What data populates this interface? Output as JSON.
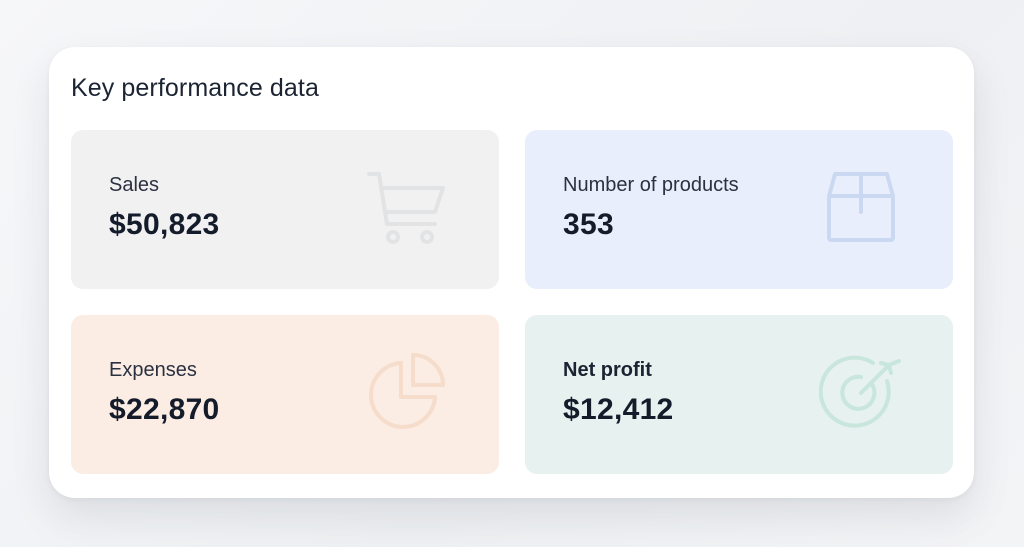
{
  "panel": {
    "title": "Key performance data"
  },
  "tiles": [
    {
      "label": "Sales",
      "value": "$50,823",
      "icon": "shopping-cart-icon",
      "bg": "#f1f1f1",
      "icon_color": "#e2e3e5"
    },
    {
      "label": "Number of products",
      "value": "353",
      "icon": "box-icon",
      "bg": "#e8eefb",
      "icon_color": "#cbd8f2"
    },
    {
      "label": "Expenses",
      "value": "$22,870",
      "icon": "pie-chart-icon",
      "bg": "#fbede4",
      "icon_color": "#f5dccb"
    },
    {
      "label": "Net profit",
      "value": "$12,412",
      "icon": "target-icon",
      "bg": "#e6f1f0",
      "icon_color": "#c9e6dc"
    }
  ]
}
